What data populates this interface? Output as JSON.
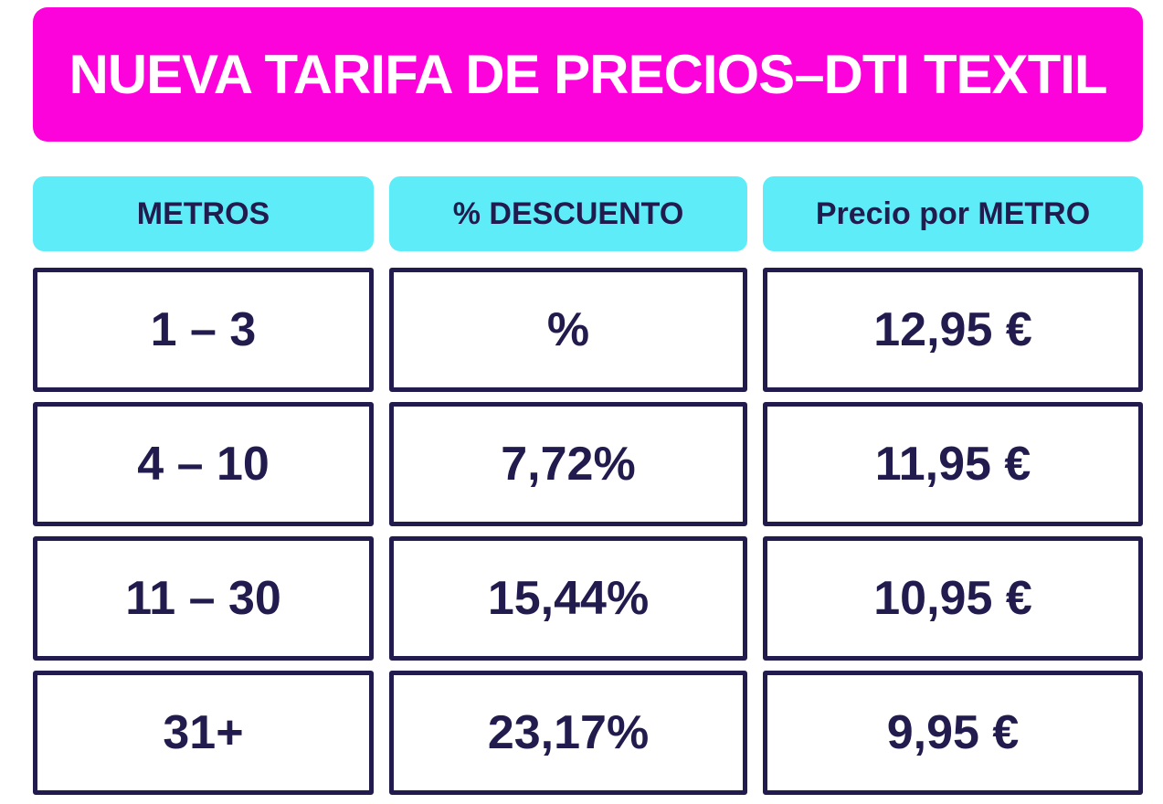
{
  "colors": {
    "banner_bg": "#fb03da",
    "banner_text": "#ffffff",
    "header_bg": "#5eedf8",
    "navy": "#221b4e",
    "cell_bg": "#ffffff"
  },
  "banner": {
    "title": "NUEVA TARIFA DE PRECIOS–DTI TEXTIL"
  },
  "table": {
    "columns": [
      {
        "label": "METROS"
      },
      {
        "label": "% DESCUENTO"
      },
      {
        "label": "Precio por METRO"
      }
    ],
    "rows": [
      {
        "metros": "1 – 3",
        "descuento": "%",
        "precio": "12,95 €"
      },
      {
        "metros": "4 – 10",
        "descuento": "7,72%",
        "precio": "11,95 €"
      },
      {
        "metros": "11 – 30",
        "descuento": "15,44%",
        "precio": "10,95 €"
      },
      {
        "metros": "31+",
        "descuento": "23,17%",
        "precio": "9,95 €"
      }
    ]
  },
  "chart_data": {
    "type": "table",
    "title": "NUEVA TARIFA DE PRECIOS–DTI TEXTIL",
    "columns": [
      "METROS",
      "% DESCUENTO",
      "Precio por METRO"
    ],
    "rows": [
      [
        "1 – 3",
        "%",
        "12,95 €"
      ],
      [
        "4 – 10",
        "7,72%",
        "11,95 €"
      ],
      [
        "11 – 30",
        "15,44%",
        "10,95 €"
      ],
      [
        "31+",
        "23,17%",
        "9,95 €"
      ]
    ],
    "notes": "Price-per-meter discount tiers; discount for tier 1–3 shown as blank % placeholder"
  }
}
